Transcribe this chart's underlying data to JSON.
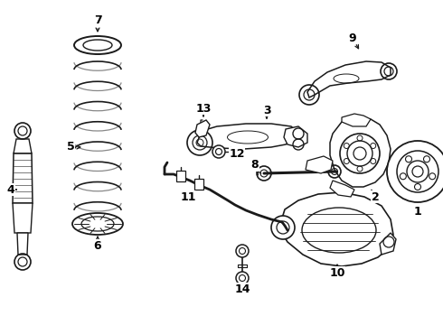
{
  "bg_color": "#ffffff",
  "line_color": "#1a1a1a",
  "figsize": [
    4.9,
    3.6
  ],
  "dpi": 100,
  "label_fontsize": 9
}
